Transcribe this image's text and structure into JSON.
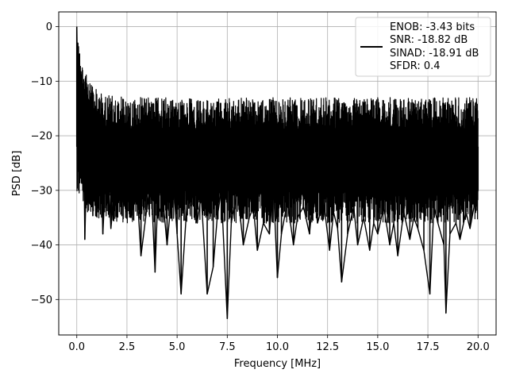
{
  "chart_data": {
    "type": "line",
    "title": "",
    "xlabel": "Frequency [MHz]",
    "ylabel": "PSD [dB]",
    "xlim": [
      -0.9,
      20.9
    ],
    "ylim": [
      -56.5,
      2.7
    ],
    "grid": true,
    "line_color": "#000000",
    "x_ticks": [
      0.0,
      2.5,
      5.0,
      7.5,
      10.0,
      12.5,
      15.0,
      17.5,
      20.0
    ],
    "x_tick_labels": [
      "0.0",
      "2.5",
      "5.0",
      "7.5",
      "10.0",
      "12.5",
      "15.0",
      "17.5",
      "20.0"
    ],
    "y_ticks": [
      0,
      -10,
      -20,
      -30,
      -40,
      -50
    ],
    "y_tick_labels": [
      "0",
      "−10",
      "−20",
      "−30",
      "−40",
      "−50"
    ],
    "legend": {
      "placement": "top-right",
      "lines": [
        "ENOB: -3.43 bits",
        "SNR: -18.82 dB",
        "SINAD: -18.91 dB",
        "SFDR: 0.4"
      ]
    },
    "series": [
      {
        "x": [
          0.0,
          0.02,
          0.05,
          0.08,
          0.1,
          0.13,
          0.15,
          0.18,
          0.2,
          0.25,
          0.3,
          0.35,
          0.4,
          0.5,
          0.6,
          0.75,
          0.9,
          1.0,
          1.2,
          1.3,
          1.5,
          1.7,
          2.0,
          2.2,
          2.5,
          2.7,
          3.0,
          3.2,
          3.5,
          3.7,
          3.9,
          4.0,
          4.3,
          4.5,
          4.8,
          5.0,
          5.2,
          5.5,
          5.7,
          6.0,
          6.2,
          6.5,
          6.8,
          7.0,
          7.2,
          7.5,
          7.7,
          8.0,
          8.3,
          8.6,
          8.8,
          9.0,
          9.3,
          9.6,
          9.8,
          10.0,
          10.2,
          10.5,
          10.8,
          11.0,
          11.3,
          11.6,
          11.8,
          12.0,
          12.3,
          12.6,
          12.8,
          13.0,
          13.2,
          13.5,
          13.8,
          14.0,
          14.3,
          14.6,
          14.8,
          15.0,
          15.3,
          15.6,
          15.8,
          16.0,
          16.3,
          16.6,
          16.8,
          17.0,
          17.3,
          17.6,
          17.8,
          18.0,
          18.3,
          18.4,
          18.6,
          18.9,
          19.1,
          19.4,
          19.6,
          19.8,
          20.0
        ],
        "y": [
          0.0,
          -5.0,
          -3.0,
          -8.0,
          -12.0,
          -10.0,
          -15.0,
          -20.0,
          -25.0,
          -18.0,
          -30.0,
          -22.0,
          -39.0,
          -24.0,
          -20.0,
          -33.0,
          -22.0,
          -28.0,
          -25.0,
          -38.0,
          -22.0,
          -37.0,
          -25.0,
          -33.0,
          -28.0,
          -35.0,
          -30.0,
          -42.0,
          -33.0,
          -28.0,
          -45.0,
          -35.0,
          -32.0,
          -40.0,
          -28.0,
          -38.0,
          -49.0,
          -32.0,
          -29.0,
          -36.0,
          -31.0,
          -49.0,
          -44.0,
          -35.0,
          -30.0,
          -53.5,
          -36.0,
          -30.0,
          -40.0,
          -35.0,
          -33.0,
          -41.0,
          -36.0,
          -38.0,
          -29.0,
          -46.0,
          -38.0,
          -32.0,
          -40.0,
          -35.0,
          -33.0,
          -38.0,
          -30.0,
          -36.0,
          -32.0,
          -41.0,
          -34.0,
          -37.0,
          -46.8,
          -38.0,
          -33.0,
          -40.0,
          -35.0,
          -41.0,
          -36.0,
          -38.0,
          -33.0,
          -40.0,
          -36.0,
          -42.0,
          -34.0,
          -39.0,
          -35.0,
          -37.0,
          -41.0,
          -49.0,
          -33.0,
          -36.0,
          -40.0,
          -52.5,
          -38.0,
          -36.0,
          -39.0,
          -34.0,
          -37.0,
          -33.0,
          -30.0
        ]
      }
    ]
  }
}
